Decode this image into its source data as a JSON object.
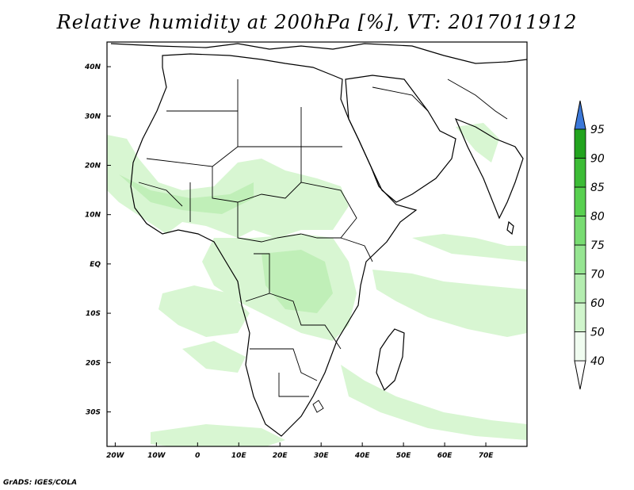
{
  "title": "Relative humidity at 200hPa [%], VT: 2017011912",
  "footer": "GrADS: IGES/COLA",
  "map": {
    "lon_range": [
      -22,
      80
    ],
    "lat_range": [
      -37,
      45
    ],
    "lon_ticks": [
      {
        "value": -20,
        "label": "20W"
      },
      {
        "value": -10,
        "label": "10W"
      },
      {
        "value": 0,
        "label": "0"
      },
      {
        "value": 10,
        "label": "10E"
      },
      {
        "value": 20,
        "label": "20E"
      },
      {
        "value": 30,
        "label": "30E"
      },
      {
        "value": 40,
        "label": "40E"
      },
      {
        "value": 50,
        "label": "50E"
      },
      {
        "value": 60,
        "label": "60E"
      },
      {
        "value": 70,
        "label": "70E"
      }
    ],
    "lat_ticks": [
      {
        "value": 40,
        "label": "40N"
      },
      {
        "value": 30,
        "label": "30N"
      },
      {
        "value": 20,
        "label": "20N"
      },
      {
        "value": 10,
        "label": "10N"
      },
      {
        "value": 0,
        "label": "EQ"
      },
      {
        "value": -10,
        "label": "10S"
      },
      {
        "value": -20,
        "label": "20S"
      },
      {
        "value": -30,
        "label": "30S"
      }
    ]
  },
  "colorbar": {
    "levels": [
      "40",
      "50",
      "60",
      "70",
      "75",
      "80",
      "85",
      "90",
      "95"
    ],
    "colors": [
      "#f0fcf0",
      "#d0f5cc",
      "#b4edb0",
      "#96e592",
      "#78dc72",
      "#58d050",
      "#3cbc36",
      "#22a41e"
    ],
    "over_color": "#3c78d8",
    "under_color": "#ffffff"
  },
  "humidity_colors": {
    "light": "#d8f6d2",
    "medium": "#c0efb8"
  }
}
